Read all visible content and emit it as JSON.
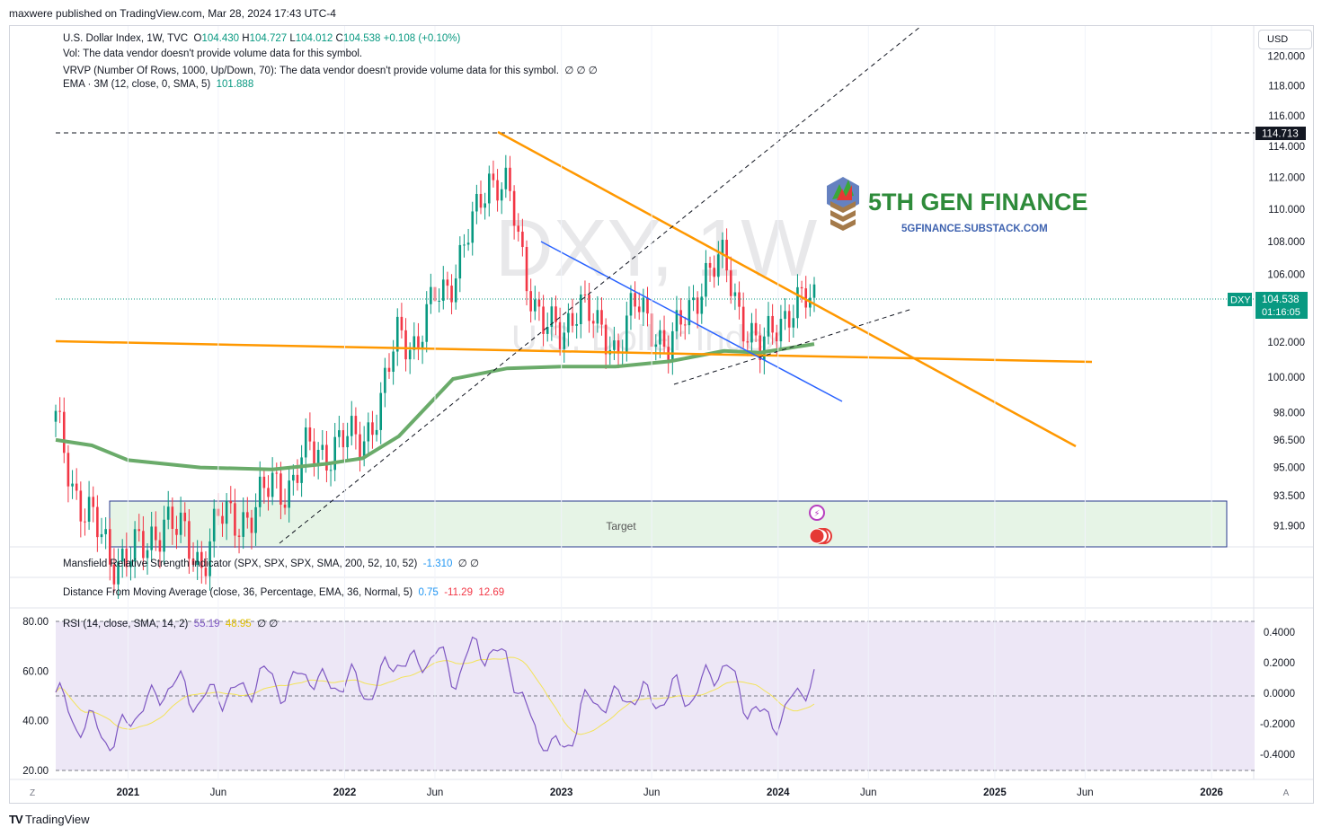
{
  "publisher_line": "maxwere published on TradingView.com, Mar 28, 2024 17:43 UTC-4",
  "currency_button": "USD",
  "legend": {
    "symbol": "U.S. Dollar Index, 1W, TVC",
    "ohlc": {
      "o_label": "O",
      "o": "104.430",
      "h_label": "H",
      "h": "104.727",
      "l_label": "L",
      "l": "104.012",
      "c_label": "C",
      "c": "104.538",
      "chg": "+0.108 (+0.10%)"
    },
    "vol": "Vol: The data vendor doesn't provide volume data for this symbol.",
    "vrvp": "VRVP (Number Of Rows, 1000, Up/Down, 70): The data vendor doesn't provide volume data for this symbol.",
    "vrvp_tail": "∅ ∅ ∅",
    "ema_label": "EMA · 3M (12, close, 0, SMA, 5)",
    "ema_value": "101.888"
  },
  "indicator_panes": {
    "mansfield": {
      "label": "Mansfield Relative Strength indicator (SPX, SPX, SPX, SMA, 200, 52, 10, 52)",
      "value": "-1.310",
      "tail": "∅ ∅"
    },
    "dfma": {
      "label": "Distance From Moving Average (close, 36, Percentage, EMA, 36, Normal, 5)",
      "v1": "0.75",
      "v2": "-11.29",
      "v3": "12.69"
    },
    "rsi": {
      "label": "RSI (14, close, SMA, 14, 2)",
      "v1": "55.19",
      "v2": "48.95",
      "tail": "∅ ∅"
    }
  },
  "watermark": {
    "ticker": "DXY, 1W",
    "name": "U.S. Dollar Index"
  },
  "logo": {
    "title": "5TH GEN FINANCE",
    "subtitle": "5GFINANCE.SUBSTACK.COM"
  },
  "target_label": "Target",
  "price_labels": {
    "level": "114.713",
    "symbol": "DXY",
    "price": "104.538",
    "countdown": "01:16:05"
  },
  "time_axis": {
    "labels": [
      "2021",
      "Jun",
      "2022",
      "Jun",
      "2023",
      "Jun",
      "2024",
      "Jun",
      "2025",
      "Jun",
      "2026"
    ],
    "left_button": "Z",
    "right_button": "A"
  },
  "footer": "TradingView",
  "colors": {
    "up": "#089981",
    "down": "#f23645",
    "ema": "#6aab6a",
    "trend_orange": "#ff9800",
    "trend_blue": "#2962ff",
    "rsi": "#7e57c2",
    "rsi_ma": "#f3e358",
    "target_fill": "#e6f4e6",
    "target_border": "#2a3a8f",
    "rsi_bg": "#ede7f6"
  },
  "chart_data": {
    "type": "candlestick",
    "title": "U.S. Dollar Index, 1W, TVC",
    "price_axis": {
      "ticks": [
        "120.000",
        "118.000",
        "116.000",
        "114.000",
        "112.000",
        "110.000",
        "108.000",
        "106.000",
        "104.000",
        "102.000",
        "100.000",
        "98.000",
        "96.500",
        "95.000",
        "93.500",
        "91.900"
      ],
      "scale": "log"
    },
    "x_range": [
      "2020-09",
      "2026-06"
    ],
    "weekly_close_path": [
      [
        "2020-09",
        97.5
      ],
      [
        "2020-10",
        93.9
      ],
      [
        "2020-11",
        92.2
      ],
      [
        "2020-12",
        90.2
      ],
      [
        "2021-01",
        90.5
      ],
      [
        "2021-02",
        90.6
      ],
      [
        "2021-03",
        92.5
      ],
      [
        "2021-04",
        91.3
      ],
      [
        "2021-05",
        90.0
      ],
      [
        "2021-06",
        92.2
      ],
      [
        "2021-07",
        92.3
      ],
      [
        "2021-08",
        92.6
      ],
      [
        "2021-09",
        94.2
      ],
      [
        "2021-10",
        94.0
      ],
      [
        "2021-11",
        96.0
      ],
      [
        "2021-12",
        95.9
      ],
      [
        "2022-01",
        96.4
      ],
      [
        "2022-02",
        96.7
      ],
      [
        "2022-03",
        98.3
      ],
      [
        "2022-04",
        102.9
      ],
      [
        "2022-05",
        101.7
      ],
      [
        "2022-06",
        104.6
      ],
      [
        "2022-07",
        105.9
      ],
      [
        "2022-08",
        108.7
      ],
      [
        "2022-09",
        112.1
      ],
      [
        "2022-10",
        111.4
      ],
      [
        "2022-11",
        105.9
      ],
      [
        "2022-12",
        103.3
      ],
      [
        "2023-01",
        102.0
      ],
      [
        "2023-02",
        104.9
      ],
      [
        "2023-03",
        102.5
      ],
      [
        "2023-04",
        101.7
      ],
      [
        "2023-05",
        104.2
      ],
      [
        "2023-06",
        102.9
      ],
      [
        "2023-07",
        101.8
      ],
      [
        "2023-08",
        103.6
      ],
      [
        "2023-09",
        106.2
      ],
      [
        "2023-10",
        106.7
      ],
      [
        "2023-11",
        103.5
      ],
      [
        "2023-12",
        101.3
      ],
      [
        "2024-01",
        103.4
      ],
      [
        "2024-02",
        104.1
      ],
      [
        "2024-03",
        104.5
      ]
    ],
    "overlays": {
      "ema_3m": [
        [
          "2020-09",
          96.5
        ],
        [
          "2020-11",
          96.2
        ],
        [
          "2021-01",
          95.4
        ],
        [
          "2021-05",
          95.0
        ],
        [
          "2021-09",
          94.9
        ],
        [
          "2021-12",
          95.2
        ],
        [
          "2022-02",
          95.5
        ],
        [
          "2022-04",
          96.7
        ],
        [
          "2022-07",
          99.9
        ],
        [
          "2022-10",
          100.5
        ],
        [
          "2023-01",
          100.6
        ],
        [
          "2023-04",
          100.6
        ],
        [
          "2023-07",
          100.9
        ],
        [
          "2023-10",
          101.5
        ],
        [
          "2023-12",
          101.4
        ],
        [
          "2024-03",
          101.9
        ]
      ],
      "horizontal_level": 114.713,
      "orange_downtrend": [
        [
          "2022-09",
          114.8
        ],
        [
          "2024-09",
          96.3
        ]
      ],
      "orange_flat": [
        [
          "2020-09",
          102.2
        ],
        [
          "2024-09",
          101.0
        ]
      ],
      "blue_channel": [
        [
          "2022-11",
          108.0
        ],
        [
          "2024-04",
          98.7
        ]
      ],
      "dashed_up_1": [
        [
          "2022-01",
          93.0
        ],
        [
          "2024-05",
          125.0
        ]
      ],
      "dashed_up_2": [
        [
          "2023-07",
          99.8
        ],
        [
          "2024-05",
          103.5
        ]
      ],
      "target_zone": {
        "from": "2020-12",
        "to": "2026-01",
        "low": "below 91.900",
        "high": 93.2
      }
    },
    "rsi": {
      "axis_left": [
        "80.00",
        "60.00",
        "40.00",
        "20.00"
      ],
      "axis_right": [
        "0.4000",
        "0.2000",
        "0.0000",
        "-0.2000",
        "-0.4000"
      ],
      "last": 55.19,
      "ma_last": 48.95
    }
  }
}
